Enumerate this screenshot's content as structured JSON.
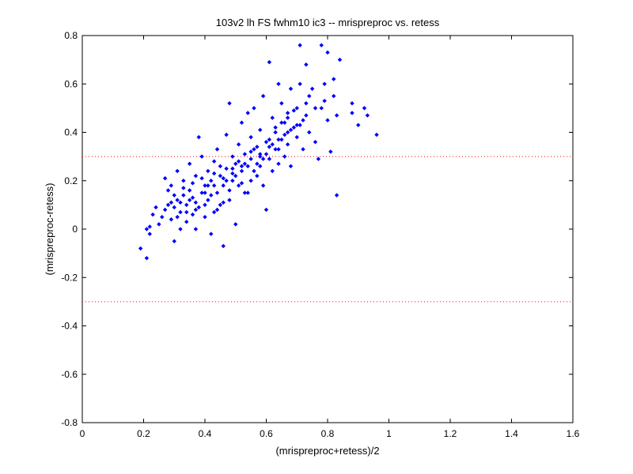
{
  "chart_data": {
    "type": "scatter",
    "title": "103v2 lh FS fwhm10 ic3 -- mrispreproc vs. retess",
    "xlabel": "(mrispreproc+retess)/2",
    "ylabel": "(mrispreproc-retess)",
    "xlim": [
      0,
      1.6
    ],
    "ylim": [
      -0.8,
      0.8
    ],
    "xticks": [
      "0",
      "0.2",
      "0.4",
      "0.6",
      "0.8",
      "1",
      "1.2",
      "1.4",
      "1.6"
    ],
    "xtick_values": [
      0,
      0.2,
      0.4,
      0.6,
      0.8,
      1.0,
      1.2,
      1.4,
      1.6
    ],
    "yticks": [
      "0.8",
      "0.6",
      "0.4",
      "0.2",
      "0",
      "-0.2",
      "-0.4",
      "-0.6",
      "-0.8"
    ],
    "ytick_values": [
      0.8,
      0.6,
      0.4,
      0.2,
      0,
      -0.2,
      -0.4,
      -0.6,
      -0.8
    ],
    "grid": false,
    "legend": "none",
    "reference_lines": [
      {
        "axis": "y",
        "value": 0.3,
        "style": "dotted",
        "color": "#ff0000"
      },
      {
        "axis": "y",
        "value": -0.3,
        "style": "dotted",
        "color": "#ff0000"
      }
    ],
    "marker_color": "#0000ff",
    "points": [
      [
        0.19,
        -0.08
      ],
      [
        0.21,
        -0.12
      ],
      [
        0.21,
        0.0
      ],
      [
        0.22,
        0.01
      ],
      [
        0.22,
        -0.02
      ],
      [
        0.23,
        0.06
      ],
      [
        0.24,
        0.09
      ],
      [
        0.25,
        0.02
      ],
      [
        0.26,
        0.05
      ],
      [
        0.27,
        0.08
      ],
      [
        0.27,
        0.21
      ],
      [
        0.28,
        0.16
      ],
      [
        0.29,
        0.04
      ],
      [
        0.29,
        0.11
      ],
      [
        0.29,
        0.18
      ],
      [
        0.3,
        -0.05
      ],
      [
        0.3,
        0.09
      ],
      [
        0.31,
        0.12
      ],
      [
        0.31,
        0.24
      ],
      [
        0.32,
        0.0
      ],
      [
        0.32,
        0.07
      ],
      [
        0.33,
        0.14
      ],
      [
        0.33,
        0.2
      ],
      [
        0.34,
        0.03
      ],
      [
        0.34,
        0.1
      ],
      [
        0.35,
        0.16
      ],
      [
        0.35,
        0.27
      ],
      [
        0.36,
        0.06
      ],
      [
        0.36,
        0.13
      ],
      [
        0.37,
        0.0
      ],
      [
        0.37,
        0.22
      ],
      [
        0.38,
        0.38
      ],
      [
        0.38,
        0.09
      ],
      [
        0.39,
        0.15
      ],
      [
        0.39,
        0.3
      ],
      [
        0.4,
        0.05
      ],
      [
        0.4,
        0.18
      ],
      [
        0.41,
        0.24
      ],
      [
        0.41,
        0.12
      ],
      [
        0.42,
        -0.02
      ],
      [
        0.42,
        0.2
      ],
      [
        0.43,
        0.28
      ],
      [
        0.43,
        0.07
      ],
      [
        0.44,
        0.15
      ],
      [
        0.44,
        0.33
      ],
      [
        0.45,
        0.22
      ],
      [
        0.45,
        0.1
      ],
      [
        0.46,
        -0.07
      ],
      [
        0.46,
        0.18
      ],
      [
        0.47,
        0.25
      ],
      [
        0.47,
        0.39
      ],
      [
        0.48,
        0.52
      ],
      [
        0.48,
        0.12
      ],
      [
        0.49,
        0.3
      ],
      [
        0.49,
        0.2
      ],
      [
        0.5,
        0.02
      ],
      [
        0.5,
        0.27
      ],
      [
        0.51,
        0.35
      ],
      [
        0.51,
        0.18
      ],
      [
        0.52,
        0.44
      ],
      [
        0.52,
        0.24
      ],
      [
        0.53,
        0.31
      ],
      [
        0.53,
        0.15
      ],
      [
        0.54,
        0.48
      ],
      [
        0.54,
        0.26
      ],
      [
        0.55,
        0.38
      ],
      [
        0.55,
        0.2
      ],
      [
        0.56,
        0.33
      ],
      [
        0.56,
        0.5
      ],
      [
        0.57,
        0.27
      ],
      [
        0.57,
        0.22
      ],
      [
        0.58,
        0.41
      ],
      [
        0.58,
        0.3
      ],
      [
        0.59,
        0.55
      ],
      [
        0.59,
        0.18
      ],
      [
        0.6,
        0.36
      ],
      [
        0.6,
        0.08
      ],
      [
        0.61,
        0.69
      ],
      [
        0.61,
        0.29
      ],
      [
        0.62,
        0.46
      ],
      [
        0.62,
        0.24
      ],
      [
        0.63,
        0.4
      ],
      [
        0.63,
        0.33
      ],
      [
        0.64,
        0.6
      ],
      [
        0.64,
        0.27
      ],
      [
        0.65,
        0.52
      ],
      [
        0.65,
        0.37
      ],
      [
        0.66,
        0.44
      ],
      [
        0.66,
        0.3
      ],
      [
        0.67,
        0.48
      ],
      [
        0.67,
        0.35
      ],
      [
        0.68,
        0.58
      ],
      [
        0.68,
        0.26
      ],
      [
        0.69,
        0.42
      ],
      [
        0.7,
        0.5
      ],
      [
        0.7,
        0.38
      ],
      [
        0.71,
        0.76
      ],
      [
        0.71,
        0.6
      ],
      [
        0.72,
        0.45
      ],
      [
        0.72,
        0.33
      ],
      [
        0.73,
        0.68
      ],
      [
        0.74,
        0.55
      ],
      [
        0.74,
        0.4
      ],
      [
        0.75,
        0.58
      ],
      [
        0.76,
        0.36
      ],
      [
        0.77,
        0.29
      ],
      [
        0.78,
        0.76
      ],
      [
        0.78,
        0.5
      ],
      [
        0.79,
        0.6
      ],
      [
        0.8,
        0.73
      ],
      [
        0.8,
        0.45
      ],
      [
        0.81,
        0.32
      ],
      [
        0.82,
        0.62
      ],
      [
        0.82,
        0.55
      ],
      [
        0.83,
        0.14
      ],
      [
        0.83,
        0.47
      ],
      [
        0.84,
        0.7
      ],
      [
        0.88,
        0.52
      ],
      [
        0.88,
        0.48
      ],
      [
        0.9,
        0.43
      ],
      [
        0.92,
        0.5
      ],
      [
        0.93,
        0.47
      ],
      [
        0.96,
        0.39
      ],
      [
        0.35,
        0.12
      ],
      [
        0.37,
        0.08
      ],
      [
        0.4,
        0.1
      ],
      [
        0.42,
        0.14
      ],
      [
        0.44,
        0.08
      ],
      [
        0.46,
        0.11
      ],
      [
        0.48,
        0.16
      ],
      [
        0.5,
        0.22
      ],
      [
        0.52,
        0.19
      ],
      [
        0.54,
        0.15
      ],
      [
        0.56,
        0.24
      ],
      [
        0.58,
        0.26
      ],
      [
        0.6,
        0.31
      ],
      [
        0.62,
        0.35
      ],
      [
        0.64,
        0.33
      ],
      [
        0.66,
        0.39
      ],
      [
        0.68,
        0.41
      ],
      [
        0.33,
        0.17
      ],
      [
        0.36,
        0.19
      ],
      [
        0.39,
        0.21
      ],
      [
        0.41,
        0.18
      ],
      [
        0.43,
        0.23
      ],
      [
        0.45,
        0.26
      ],
      [
        0.47,
        0.2
      ],
      [
        0.49,
        0.25
      ],
      [
        0.51,
        0.28
      ],
      [
        0.53,
        0.27
      ],
      [
        0.55,
        0.32
      ],
      [
        0.57,
        0.34
      ],
      [
        0.59,
        0.29
      ],
      [
        0.61,
        0.37
      ],
      [
        0.63,
        0.42
      ],
      [
        0.65,
        0.44
      ],
      [
        0.67,
        0.46
      ],
      [
        0.69,
        0.49
      ],
      [
        0.71,
        0.43
      ],
      [
        0.73,
        0.52
      ],
      [
        0.31,
        0.05
      ],
      [
        0.34,
        0.07
      ],
      [
        0.37,
        0.11
      ],
      [
        0.4,
        0.15
      ],
      [
        0.43,
        0.18
      ],
      [
        0.46,
        0.21
      ],
      [
        0.49,
        0.23
      ],
      [
        0.52,
        0.26
      ],
      [
        0.55,
        0.29
      ],
      [
        0.58,
        0.31
      ],
      [
        0.61,
        0.34
      ],
      [
        0.64,
        0.37
      ],
      [
        0.67,
        0.4
      ],
      [
        0.7,
        0.43
      ],
      [
        0.73,
        0.47
      ],
      [
        0.76,
        0.5
      ],
      [
        0.79,
        0.53
      ],
      [
        0.28,
        0.1
      ],
      [
        0.3,
        0.14
      ],
      [
        0.32,
        0.11
      ]
    ]
  }
}
